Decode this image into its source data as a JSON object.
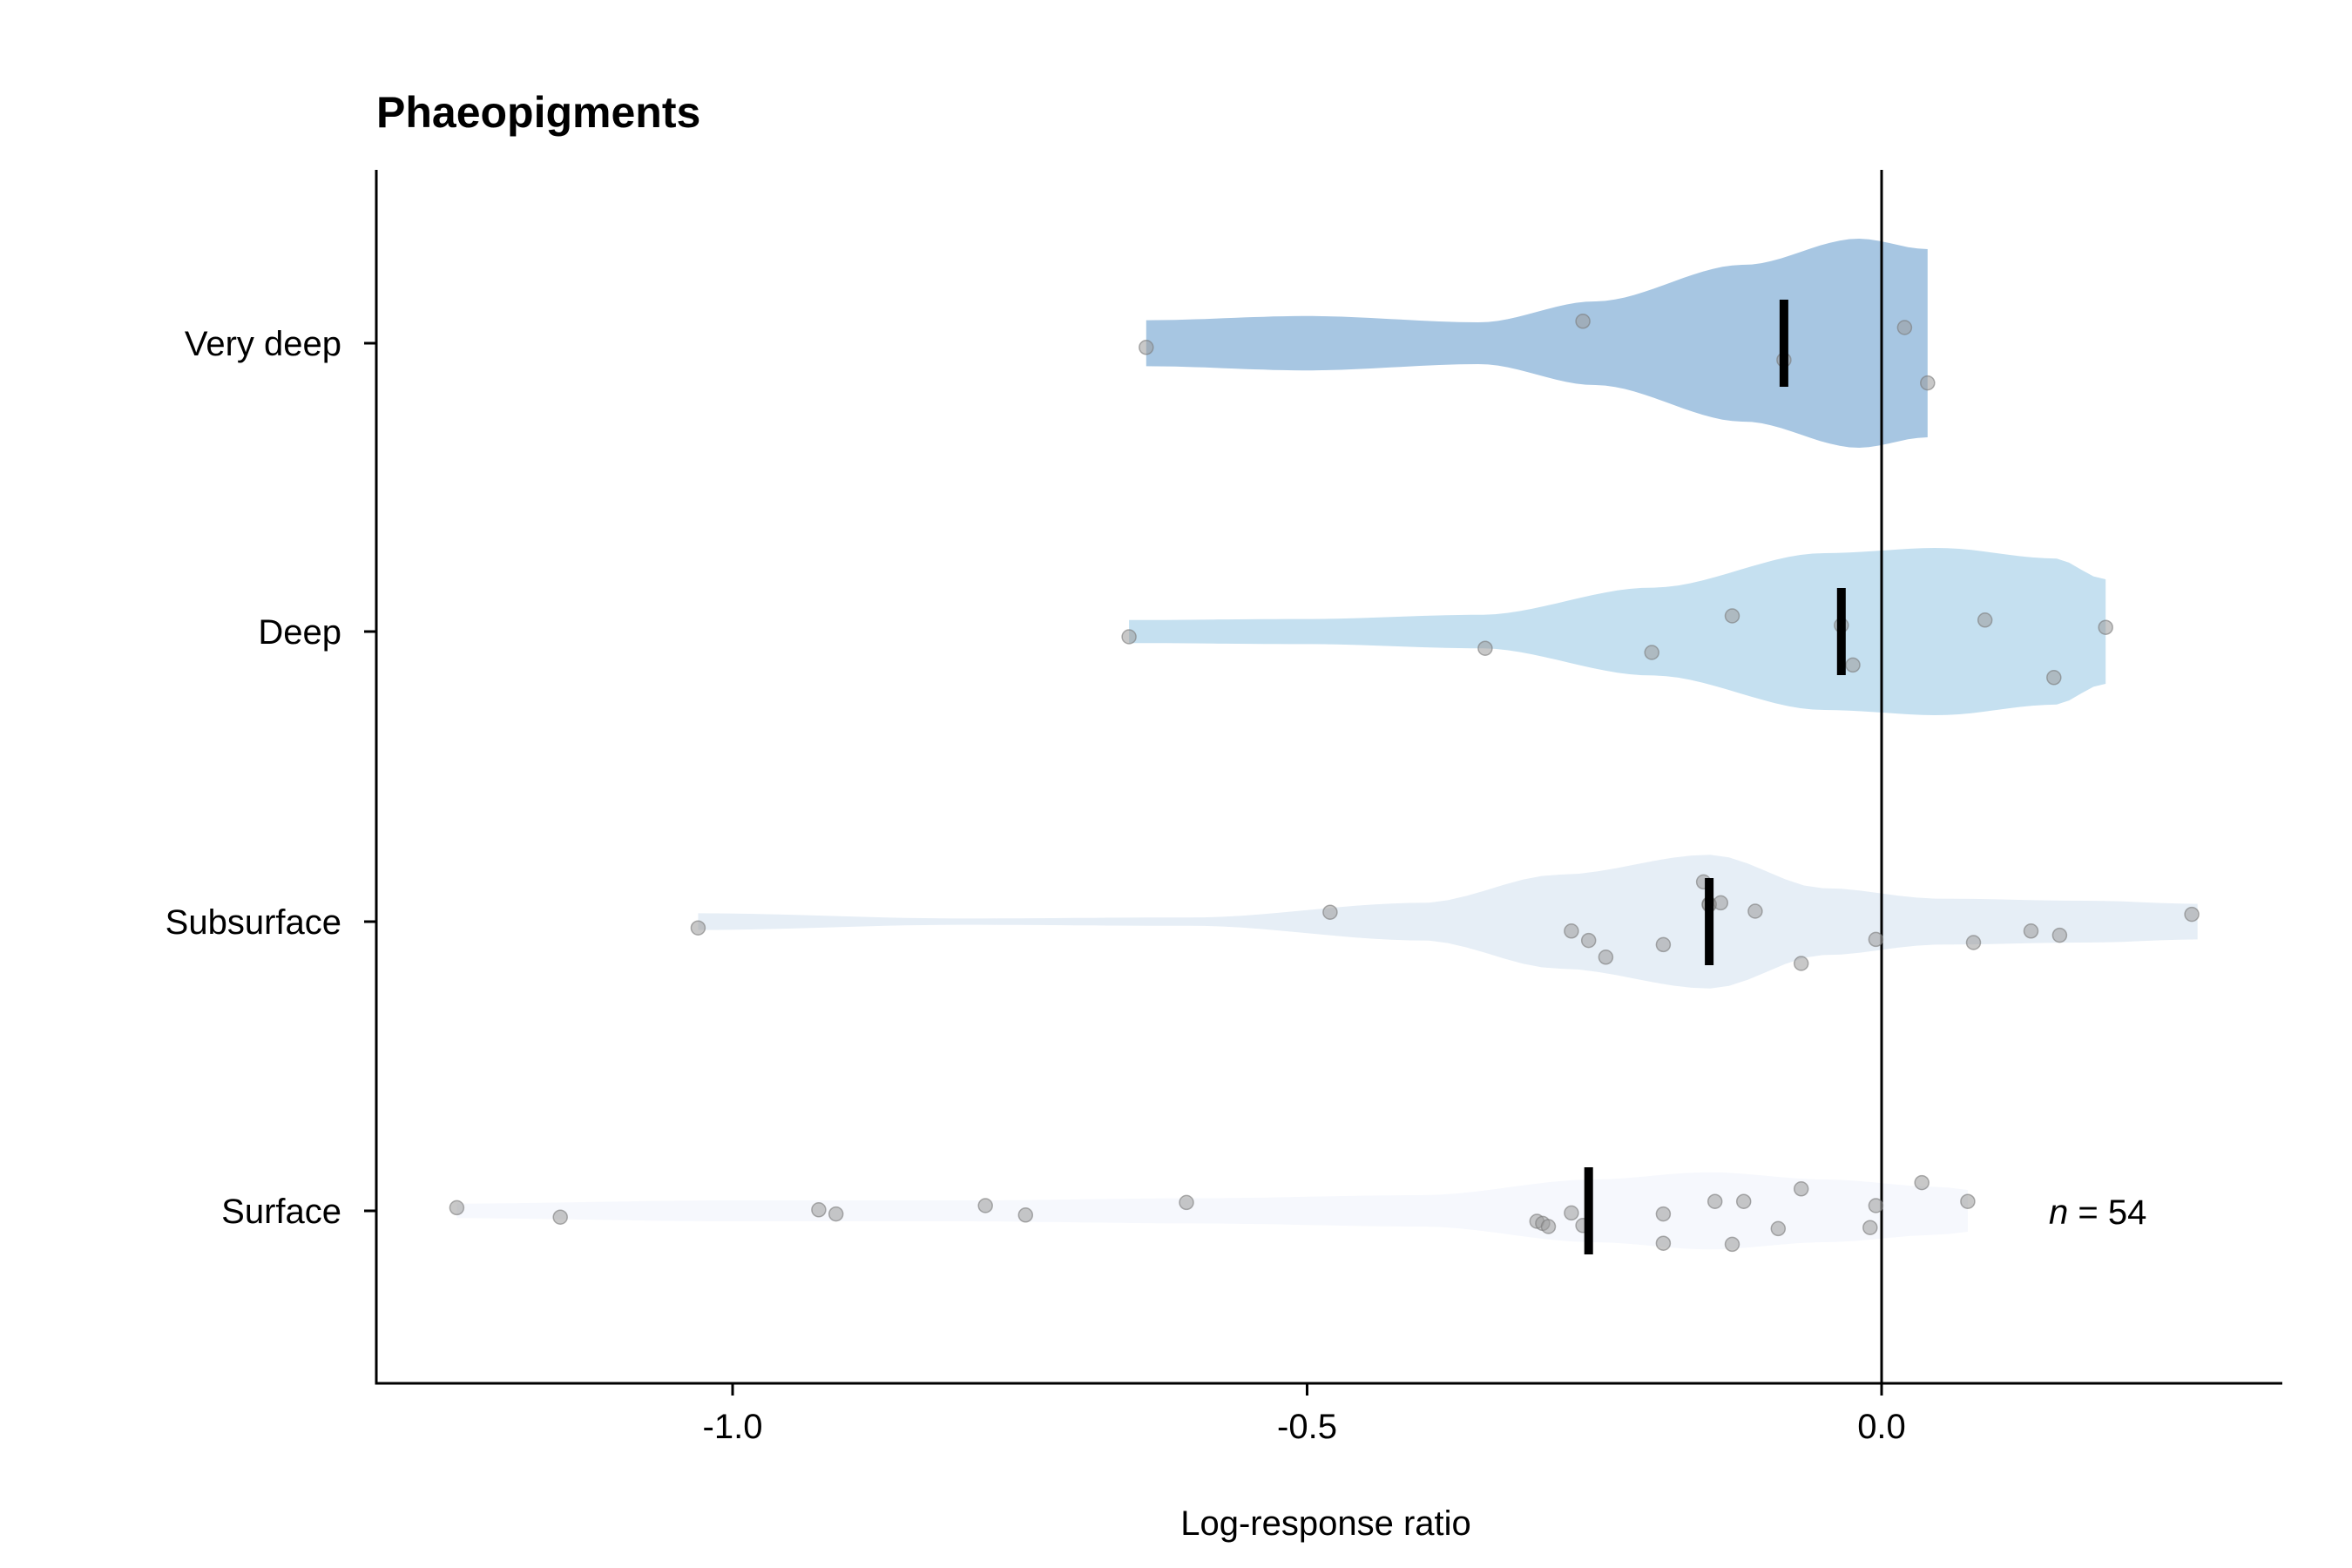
{
  "chart_data": {
    "type": "violin",
    "title": "Phaeopigments",
    "xlabel": "Log-response ratio",
    "ylabel": "",
    "xlim": [
      -1.31,
      0.35
    ],
    "xticks": [
      -1.0,
      -0.5,
      0.0
    ],
    "xtick_labels": [
      "-1.0",
      "-0.5",
      "0.0"
    ],
    "reference_line_x": 0.0,
    "grid": false,
    "legend": "none",
    "annotation": {
      "prefix": "n",
      "text": " = 54"
    },
    "categories": [
      "Surface",
      "Subsurface",
      "Deep",
      "Very deep"
    ],
    "groups": [
      {
        "category": "Very deep",
        "color": "#a7c6e2",
        "range": [
          -0.64,
          0.04
        ],
        "median": -0.085,
        "profile": [
          [
            -0.64,
            0.22
          ],
          [
            -0.5,
            0.26
          ],
          [
            -0.35,
            0.2
          ],
          [
            -0.25,
            0.4
          ],
          [
            -0.12,
            0.75
          ],
          [
            -0.02,
            1.0
          ],
          [
            0.04,
            0.9
          ]
        ],
        "points": [
          {
            "x": -0.64,
            "y": -0.04
          },
          {
            "x": -0.26,
            "y": 0.21
          },
          {
            "x": -0.085,
            "y": -0.16
          },
          {
            "x": 0.02,
            "y": 0.15
          },
          {
            "x": 0.04,
            "y": -0.38
          }
        ]
      },
      {
        "category": "Deep",
        "color": "#c5e0f0",
        "range": [
          -0.655,
          0.195
        ],
        "median": -0.035,
        "profile": [
          [
            -0.655,
            0.11
          ],
          [
            -0.5,
            0.12
          ],
          [
            -0.35,
            0.16
          ],
          [
            -0.2,
            0.42
          ],
          [
            -0.05,
            0.75
          ],
          [
            0.05,
            0.8
          ],
          [
            0.15,
            0.7
          ],
          [
            0.195,
            0.5
          ]
        ],
        "points": [
          {
            "x": -0.655,
            "y": -0.05
          },
          {
            "x": -0.345,
            "y": -0.16
          },
          {
            "x": -0.2,
            "y": -0.2
          },
          {
            "x": -0.13,
            "y": 0.15
          },
          {
            "x": -0.035,
            "y": 0.06
          },
          {
            "x": -0.025,
            "y": -0.32
          },
          {
            "x": 0.09,
            "y": 0.11
          },
          {
            "x": 0.15,
            "y": -0.44
          },
          {
            "x": 0.195,
            "y": 0.04
          }
        ]
      },
      {
        "category": "Subsurface",
        "color": "#e6eef6",
        "range": [
          -1.03,
          0.275
        ],
        "median": -0.15,
        "profile": [
          [
            -1.03,
            0.08
          ],
          [
            -0.8,
            0.03
          ],
          [
            -0.6,
            0.04
          ],
          [
            -0.4,
            0.18
          ],
          [
            -0.28,
            0.45
          ],
          [
            -0.15,
            0.64
          ],
          [
            -0.05,
            0.32
          ],
          [
            0.05,
            0.22
          ],
          [
            0.18,
            0.2
          ],
          [
            0.275,
            0.17
          ]
        ],
        "points": [
          {
            "x": -1.03,
            "y": -0.06
          },
          {
            "x": -0.48,
            "y": 0.09
          },
          {
            "x": -0.27,
            "y": -0.09
          },
          {
            "x": -0.255,
            "y": -0.18
          },
          {
            "x": -0.24,
            "y": -0.34
          },
          {
            "x": -0.19,
            "y": -0.22
          },
          {
            "x": -0.155,
            "y": 0.38
          },
          {
            "x": -0.15,
            "y": 0.17
          },
          {
            "x": -0.15,
            "y": 0.16
          },
          {
            "x": -0.14,
            "y": 0.18
          },
          {
            "x": -0.11,
            "y": 0.1
          },
          {
            "x": -0.07,
            "y": -0.4
          },
          {
            "x": -0.005,
            "y": -0.17
          },
          {
            "x": 0.08,
            "y": -0.2
          },
          {
            "x": 0.13,
            "y": -0.09
          },
          {
            "x": 0.155,
            "y": -0.13
          },
          {
            "x": 0.27,
            "y": 0.07
          }
        ]
      },
      {
        "category": "Surface",
        "color": "#f6f8fd",
        "range": [
          -1.24,
          0.075
        ],
        "median": -0.255,
        "profile": [
          [
            -1.24,
            0.07
          ],
          [
            -1.0,
            0.1
          ],
          [
            -0.8,
            0.1
          ],
          [
            -0.6,
            0.12
          ],
          [
            -0.4,
            0.15
          ],
          [
            -0.25,
            0.3
          ],
          [
            -0.15,
            0.37
          ],
          [
            -0.05,
            0.3
          ],
          [
            0.05,
            0.23
          ],
          [
            0.075,
            0.2
          ]
        ],
        "points": [
          {
            "x": -1.24,
            "y": 0.03
          },
          {
            "x": -1.15,
            "y": -0.06
          },
          {
            "x": -0.925,
            "y": 0.01
          },
          {
            "x": -0.91,
            "y": -0.03
          },
          {
            "x": -0.78,
            "y": 0.05
          },
          {
            "x": -0.745,
            "y": -0.04
          },
          {
            "x": -0.605,
            "y": 0.08
          },
          {
            "x": -0.3,
            "y": -0.1
          },
          {
            "x": -0.295,
            "y": -0.12
          },
          {
            "x": -0.29,
            "y": -0.15
          },
          {
            "x": -0.27,
            "y": -0.02
          },
          {
            "x": -0.26,
            "y": -0.14
          },
          {
            "x": -0.19,
            "y": -0.03
          },
          {
            "x": -0.19,
            "y": -0.31
          },
          {
            "x": -0.145,
            "y": 0.09
          },
          {
            "x": -0.13,
            "y": -0.32
          },
          {
            "x": -0.12,
            "y": 0.09
          },
          {
            "x": -0.09,
            "y": -0.17
          },
          {
            "x": -0.07,
            "y": 0.21
          },
          {
            "x": -0.01,
            "y": -0.16
          },
          {
            "x": -0.005,
            "y": 0.05
          },
          {
            "x": 0.035,
            "y": 0.27
          },
          {
            "x": 0.075,
            "y": 0.09
          }
        ]
      }
    ]
  }
}
